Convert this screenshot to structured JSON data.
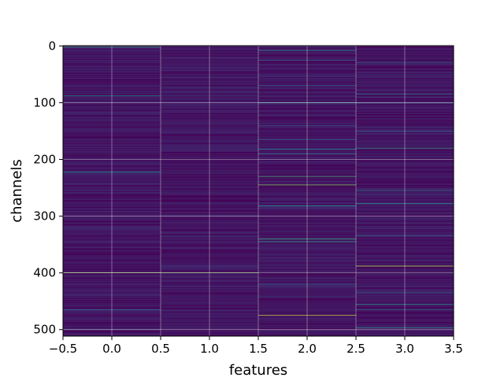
{
  "chart_data": {
    "type": "heatmap",
    "title": "",
    "xlabel": "features",
    "ylabel": "channels",
    "xlim": [
      -0.5,
      3.5
    ],
    "ylim": [
      511.5,
      -0.5
    ],
    "x_ticks": [
      -0.5,
      0.0,
      0.5,
      1.0,
      1.5,
      2.0,
      2.5,
      3.0,
      3.5
    ],
    "x_tick_labels": [
      "−0.5",
      "0.0",
      "0.5",
      "1.0",
      "1.5",
      "2.0",
      "2.5",
      "3.0",
      "3.5"
    ],
    "y_ticks": [
      0,
      100,
      200,
      300,
      400,
      500
    ],
    "y_tick_labels": [
      "0",
      "100",
      "200",
      "300",
      "400",
      "500"
    ],
    "grid": true,
    "colormap": "viridis",
    "rows": 512,
    "columns": 4,
    "baseline_value_range": [
      0.0,
      0.12
    ],
    "highlights": [
      {
        "feature": 0,
        "channel": 2,
        "value": 0.55
      },
      {
        "feature": 0,
        "channel": 88,
        "value": 0.45
      },
      {
        "feature": 0,
        "channel": 222,
        "value": 0.5
      },
      {
        "feature": 0,
        "channel": 400,
        "value": 0.85
      },
      {
        "feature": 0,
        "channel": 465,
        "value": 0.35
      },
      {
        "feature": 0,
        "channel": 500,
        "value": 0.3
      },
      {
        "feature": 1,
        "channel": 55,
        "value": 0.2
      },
      {
        "feature": 1,
        "channel": 400,
        "value": 0.8
      },
      {
        "feature": 2,
        "channel": 8,
        "value": 0.5
      },
      {
        "feature": 2,
        "channel": 25,
        "value": 0.35
      },
      {
        "feature": 2,
        "channel": 70,
        "value": 0.35
      },
      {
        "feature": 2,
        "channel": 100,
        "value": 0.55
      },
      {
        "feature": 2,
        "channel": 140,
        "value": 0.25
      },
      {
        "feature": 2,
        "channel": 165,
        "value": 0.3
      },
      {
        "feature": 2,
        "channel": 182,
        "value": 0.45
      },
      {
        "feature": 2,
        "channel": 190,
        "value": 0.4
      },
      {
        "feature": 2,
        "channel": 230,
        "value": 0.65
      },
      {
        "feature": 2,
        "channel": 245,
        "value": 0.8
      },
      {
        "feature": 2,
        "channel": 282,
        "value": 0.5
      },
      {
        "feature": 2,
        "channel": 340,
        "value": 0.6
      },
      {
        "feature": 2,
        "channel": 345,
        "value": 0.55
      },
      {
        "feature": 2,
        "channel": 420,
        "value": 0.35
      },
      {
        "feature": 2,
        "channel": 475,
        "value": 0.9
      },
      {
        "feature": 3,
        "channel": 30,
        "value": 0.35
      },
      {
        "feature": 3,
        "channel": 85,
        "value": 0.4
      },
      {
        "feature": 3,
        "channel": 100,
        "value": 0.35
      },
      {
        "feature": 3,
        "channel": 150,
        "value": 0.3
      },
      {
        "feature": 3,
        "channel": 180,
        "value": 0.55
      },
      {
        "feature": 3,
        "channel": 255,
        "value": 0.4
      },
      {
        "feature": 3,
        "channel": 278,
        "value": 0.5
      },
      {
        "feature": 3,
        "channel": 335,
        "value": 0.35
      },
      {
        "feature": 3,
        "channel": 388,
        "value": 0.9
      },
      {
        "feature": 3,
        "channel": 435,
        "value": 0.35
      },
      {
        "feature": 3,
        "channel": 455,
        "value": 0.5
      },
      {
        "feature": 3,
        "channel": 465,
        "value": 0.35
      },
      {
        "feature": 3,
        "channel": 497,
        "value": 0.55
      }
    ]
  }
}
